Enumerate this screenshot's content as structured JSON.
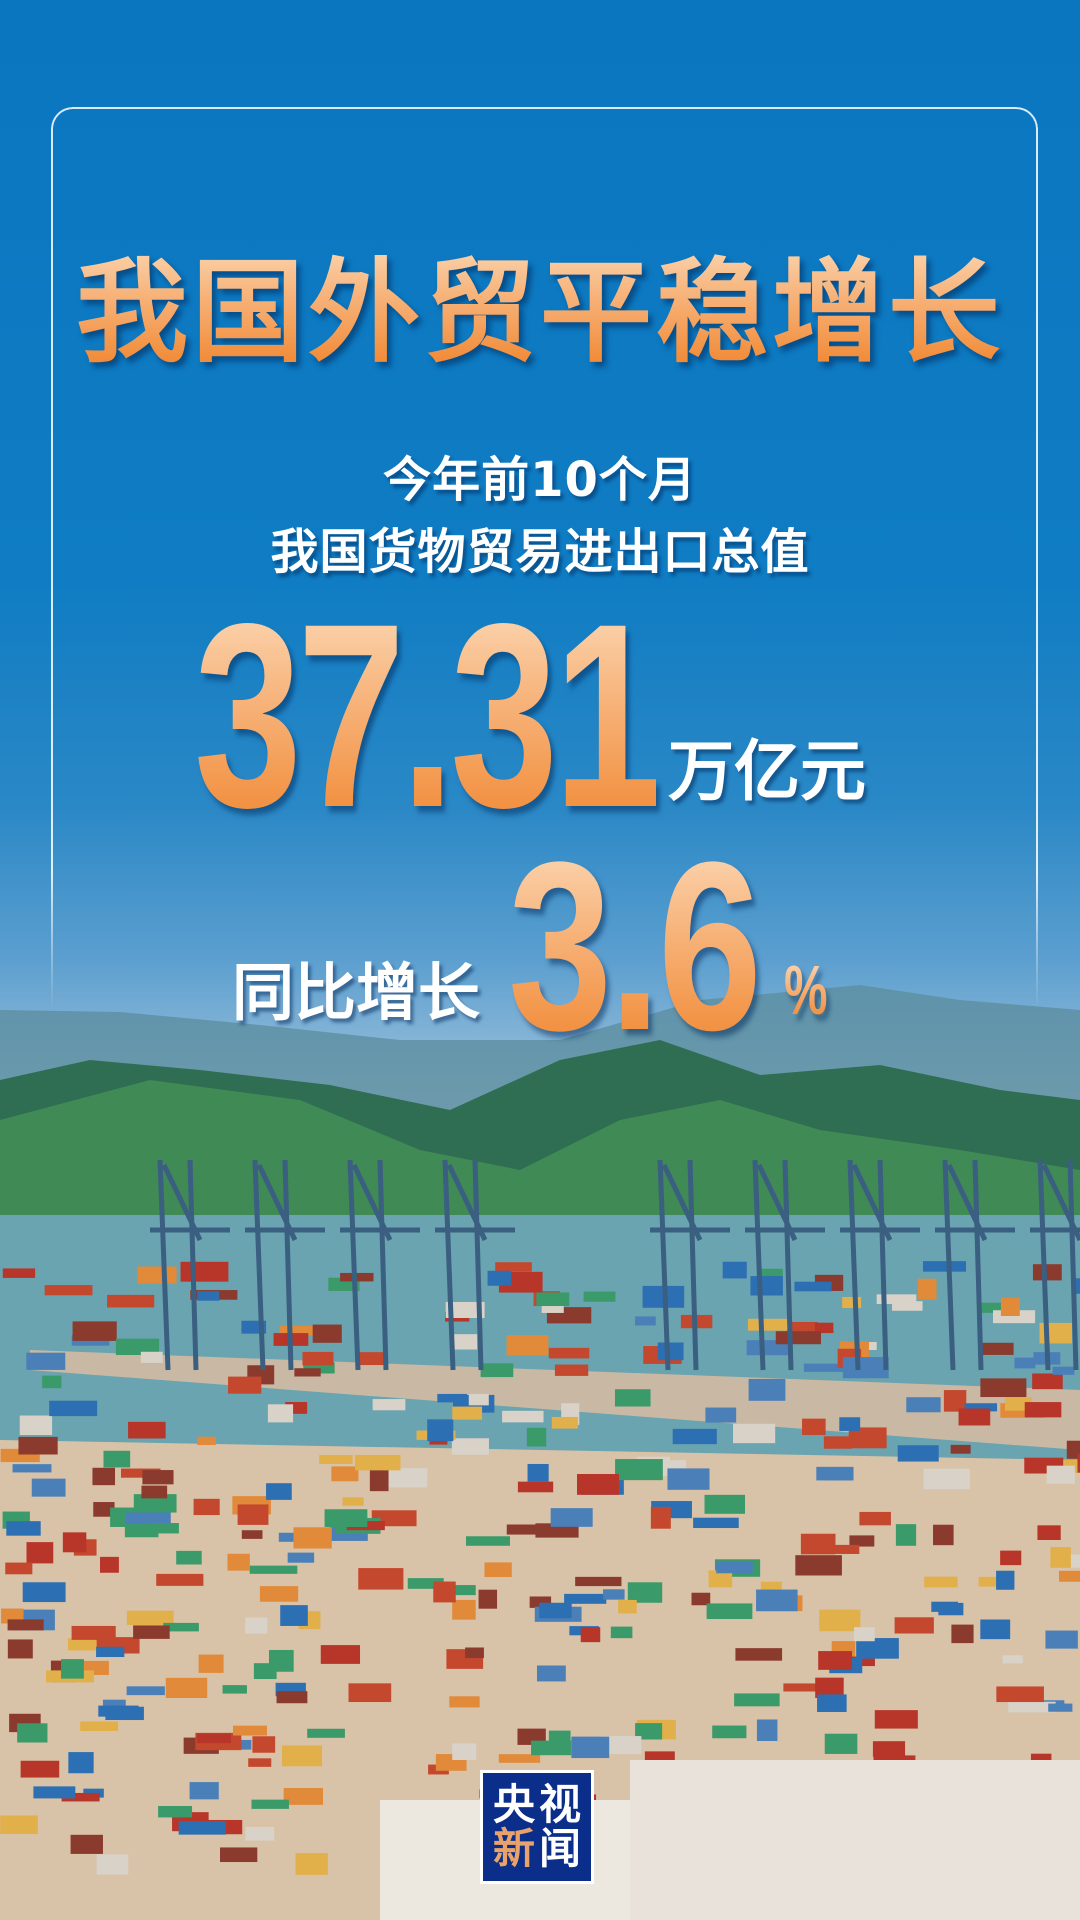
{
  "headline": "我国外贸平稳增长",
  "subtitle": {
    "line1": "今年前10个月",
    "line2": "我国货物贸易进出口总值"
  },
  "total": {
    "value": "37.31",
    "unit": "万亿元"
  },
  "growth": {
    "label": "同比增长",
    "value": "3.6",
    "unit": "%"
  },
  "logo": {
    "chars": [
      "央",
      "视",
      "新",
      "闻"
    ],
    "bg_color": "#0a2e8a",
    "accent": "#e9a36a"
  },
  "colors": {
    "sky": "#0a76c0",
    "number_gradient_top": "#fde4c8",
    "number_gradient_bottom": "#ef7e22"
  },
  "background_image": "container port with cranes, bay and green mountains under blue sky"
}
